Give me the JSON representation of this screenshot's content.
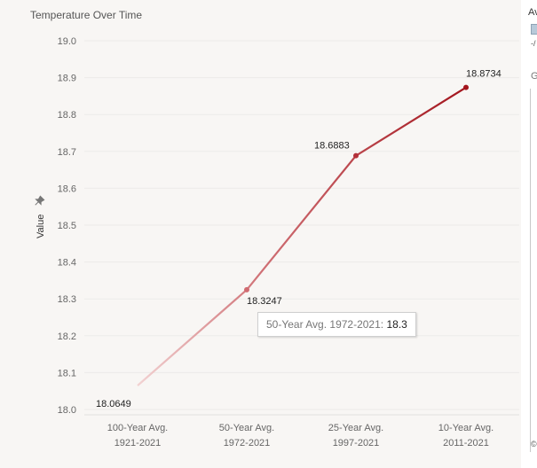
{
  "chart_data": {
    "type": "line",
    "title": "Temperature Over Time",
    "xlabel": "",
    "ylabel": "Value",
    "ylim": [
      18.0,
      19.0
    ],
    "yticks": [
      "19.0",
      "18.9",
      "18.8",
      "18.7",
      "18.6",
      "18.5",
      "18.4",
      "18.3",
      "18.2",
      "18.1",
      "18.0"
    ],
    "categories": [
      [
        "100-Year Avg.",
        "1921-2021"
      ],
      [
        "50-Year Avg.",
        "1972-2021"
      ],
      [
        "25-Year Avg.",
        "1997-2021"
      ],
      [
        "10-Year Avg.",
        "2011-2021"
      ]
    ],
    "series": [
      {
        "values": [
          18.0649,
          18.3247,
          18.6883,
          18.8734
        ]
      }
    ],
    "data_labels": [
      "18.0649",
      "18.3247",
      "18.6883",
      "18.8734"
    ],
    "grid": true,
    "line_gradient": [
      "#f2d2d2",
      "#a3151d"
    ]
  },
  "tooltip": {
    "label": "50-Year Avg. 1972-2021:",
    "value": "18.3"
  },
  "legend": {
    "title": "Av",
    "dash": "-/",
    "g": "G",
    "bottom": "©"
  }
}
